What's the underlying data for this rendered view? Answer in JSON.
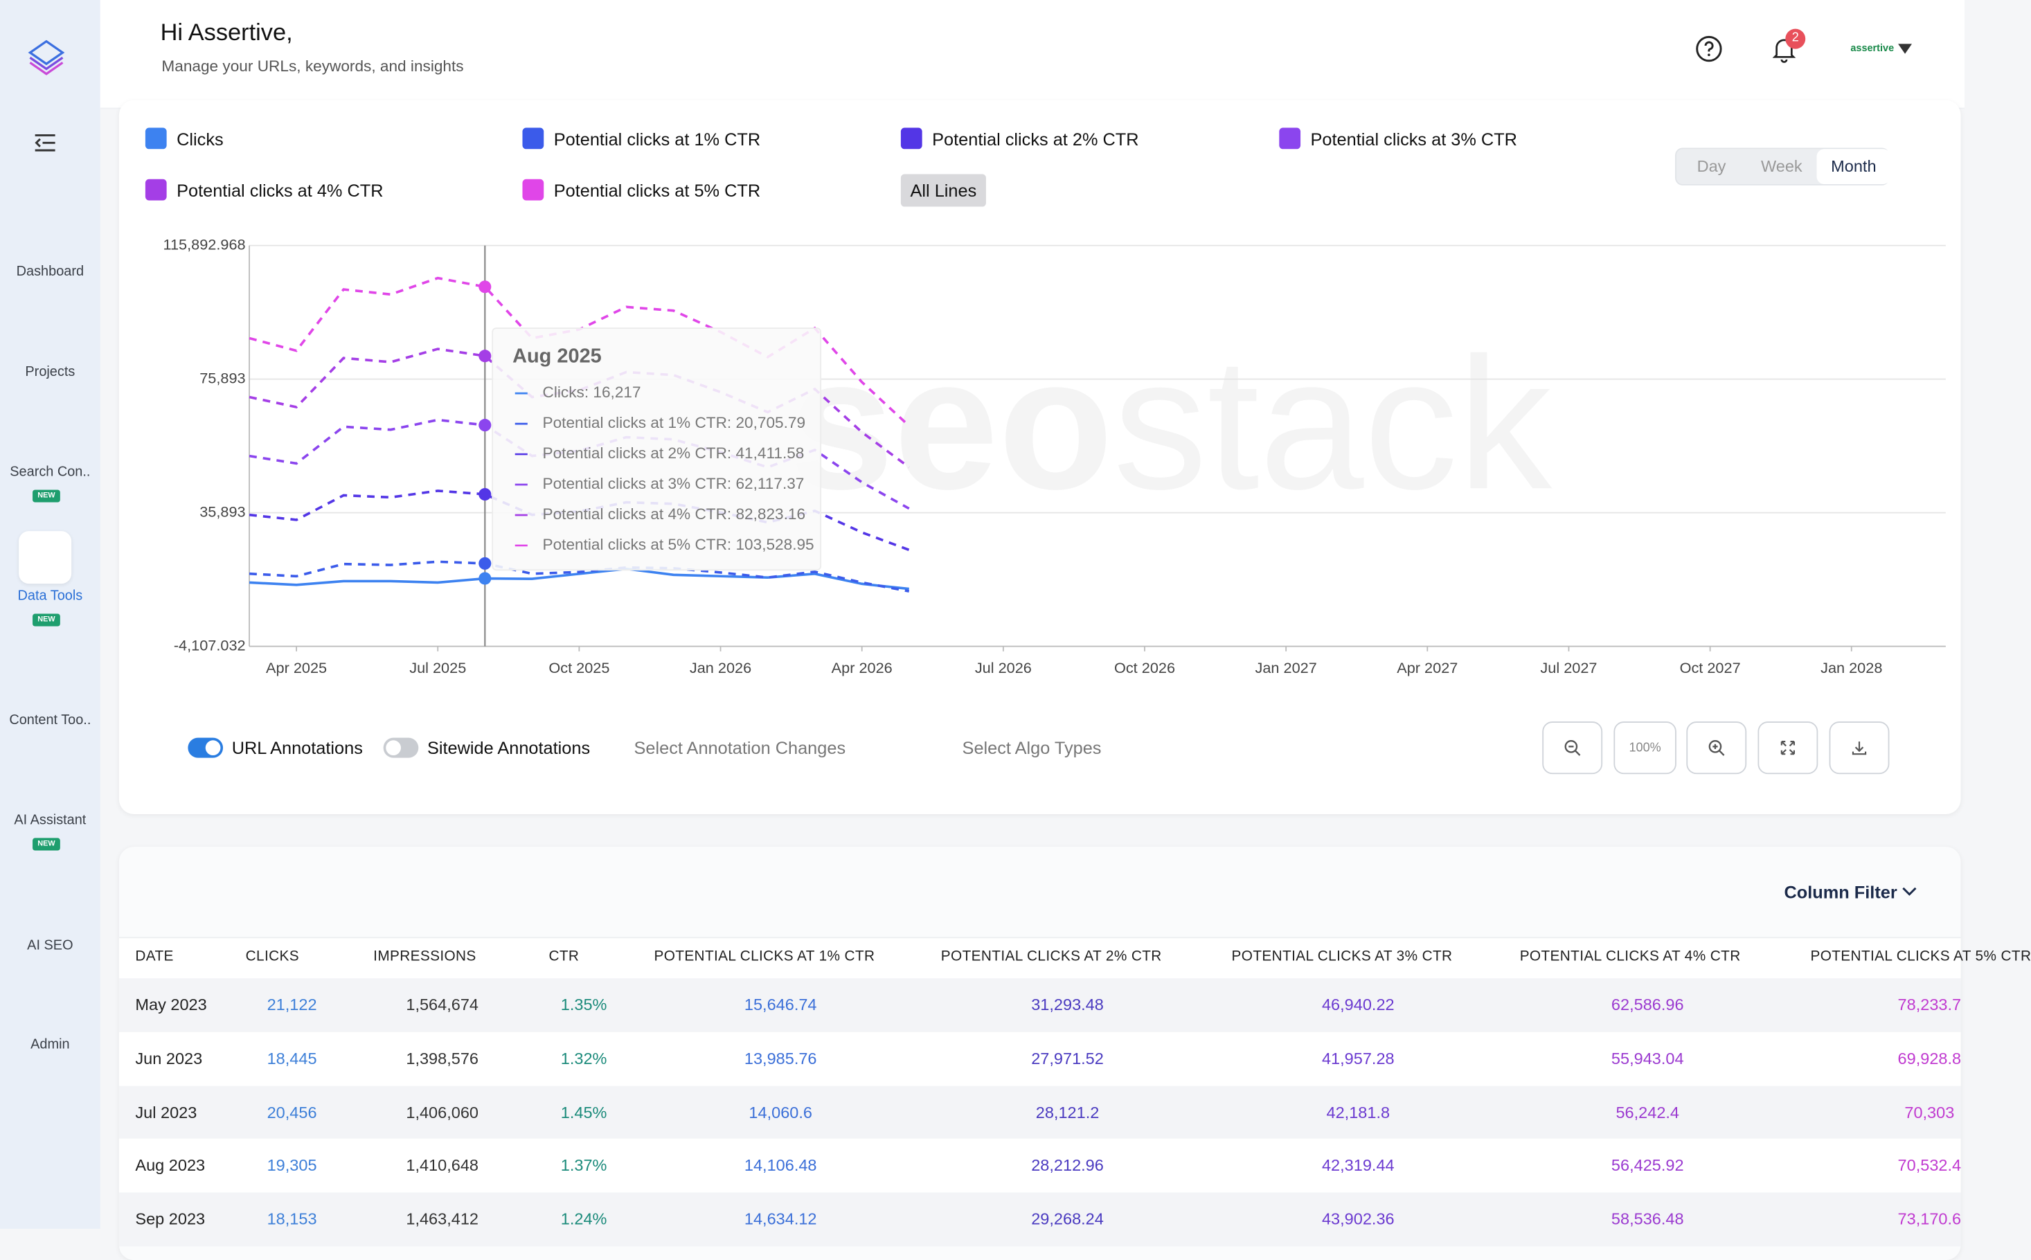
{
  "sidebar": {
    "items": [
      {
        "label": "Dashboard"
      },
      {
        "label": "Projects"
      },
      {
        "label": "Search Con..",
        "badge": "NEW"
      },
      {
        "label": "Data Tools",
        "badge": "NEW"
      },
      {
        "label": "Content Too.."
      },
      {
        "label": "AI Assistant",
        "badge": "NEW"
      },
      {
        "label": "AI SEO"
      },
      {
        "label": "Admin"
      }
    ]
  },
  "header": {
    "greeting": "Hi Assertive,",
    "subtitle": "Manage your URLs, keywords, and insights",
    "notifications": "2",
    "account": "assertive"
  },
  "chart_data": {
    "type": "line",
    "x": [
      "2025-03",
      "2025-04",
      "2025-05",
      "2025-06",
      "2025-07",
      "2025-08",
      "2025-09",
      "2025-10",
      "2025-11",
      "2025-12",
      "2026-01",
      "2026-02",
      "2026-03",
      "2026-04",
      "2026-05"
    ],
    "series": [
      {
        "name": "Clicks",
        "color": "#3d82f0",
        "dashed": false,
        "values": [
          15000,
          14300,
          15400,
          15400,
          15000,
          16217,
          16100,
          17600,
          19100,
          17300,
          16900,
          16500,
          17600,
          14600,
          13100
        ]
      },
      {
        "name": "Potential clicks at 1% CTR",
        "color": "#3b5bea",
        "dashed": true,
        "values": [
          17630,
          16880,
          20550,
          20250,
          21230,
          20705.79,
          17630,
          18150,
          19500,
          19280,
          18000,
          16500,
          18230,
          15000,
          12380
        ]
      },
      {
        "name": "Potential clicks at 2% CTR",
        "color": "#5336e6",
        "dashed": true,
        "values": [
          35260,
          33760,
          41100,
          40500,
          42460,
          41411.58,
          35260,
          36300,
          39000,
          38560,
          36000,
          33000,
          36460,
          30000,
          24760
        ]
      },
      {
        "name": "Potential clicks at 3% CTR",
        "color": "#8b45ee",
        "dashed": true,
        "values": [
          52890,
          50640,
          61650,
          60750,
          63690,
          62117.37,
          52890,
          54450,
          58500,
          57840,
          54000,
          49500,
          54690,
          45000,
          37140
        ]
      },
      {
        "name": "Potential clicks at 4% CTR",
        "color": "#a43ee6",
        "dashed": true,
        "values": [
          70520,
          67520,
          82200,
          81000,
          84920,
          82823.16,
          70520,
          72600,
          78000,
          77120,
          72000,
          66000,
          72920,
          60000,
          49520
        ]
      },
      {
        "name": "Potential clicks at 5% CTR",
        "color": "#e046e8",
        "dashed": true,
        "values": [
          88150,
          84400,
          102750,
          101250,
          106150,
          103528.95,
          88150,
          90750,
          97500,
          96400,
          90000,
          82500,
          91150,
          75000,
          61900
        ]
      }
    ],
    "xlim": [
      "2025-03",
      "2028-03"
    ],
    "xticks": [
      {
        "value": "2025-04",
        "label": "Apr 2025"
      },
      {
        "value": "2025-07",
        "label": "Jul 2025"
      },
      {
        "value": "2025-10",
        "label": "Oct 2025"
      },
      {
        "value": "2026-01",
        "label": "Jan 2026"
      },
      {
        "value": "2026-04",
        "label": "Apr 2026"
      },
      {
        "value": "2026-07",
        "label": "Jul 2026"
      },
      {
        "value": "2026-10",
        "label": "Oct 2026"
      },
      {
        "value": "2027-01",
        "label": "Jan 2027"
      },
      {
        "value": "2027-04",
        "label": "Apr 2027"
      },
      {
        "value": "2027-07",
        "label": "Jul 2027"
      },
      {
        "value": "2027-10",
        "label": "Oct 2027"
      },
      {
        "value": "2028-01",
        "label": "Jan 2028"
      }
    ],
    "ylim": [
      -4107.032,
      115892.968
    ],
    "yticks": [
      {
        "value": -4107.032,
        "label": "-4,107.032"
      },
      {
        "value": 35893,
        "label": "35,893"
      },
      {
        "value": 75893,
        "label": "75,893"
      },
      {
        "value": 115892.968,
        "label": "115,892.968"
      }
    ],
    "grid": true,
    "all_lines": "All Lines",
    "tooltip": {
      "title": "Aug 2025",
      "rows": [
        "Clicks: 16,217",
        "Potential clicks at 1% CTR: 20,705.79",
        "Potential clicks at 2% CTR: 41,411.58",
        "Potential clicks at 3% CTR: 62,117.37",
        "Potential clicks at 4% CTR: 82,823.16",
        "Potential clicks at 5% CTR: 103,528.95"
      ]
    },
    "watermark": [
      "seo",
      "stack"
    ]
  },
  "chart_controls": {
    "periods": [
      "Day",
      "Week",
      "Month"
    ],
    "toggles": [
      "URL Annotations",
      "Sitewide Annotations"
    ],
    "selects": [
      "Select Annotation Changes",
      "Select Algo Types"
    ],
    "zoom": "100%"
  },
  "table": {
    "column_filter": "Column Filter",
    "headers": [
      "DATE",
      "CLICKS",
      "IMPRESSIONS",
      "CTR",
      "POTENTIAL CLICKS AT 1% CTR",
      "POTENTIAL CLICKS AT 2% CTR",
      "POTENTIAL CLICKS AT 3% CTR",
      "POTENTIAL CLICKS AT 4% CTR",
      "POTENTIAL CLICKS AT 5% CTR"
    ],
    "rows": [
      [
        "May 2023",
        "21,122",
        "1,564,674",
        "1.35%",
        "15,646.74",
        "31,293.48",
        "46,940.22",
        "62,586.96",
        "78,233.7"
      ],
      [
        "Jun 2023",
        "18,445",
        "1,398,576",
        "1.32%",
        "13,985.76",
        "27,971.52",
        "41,957.28",
        "55,943.04",
        "69,928.8"
      ],
      [
        "Jul 2023",
        "20,456",
        "1,406,060",
        "1.45%",
        "14,060.6",
        "28,121.2",
        "42,181.8",
        "56,242.4",
        "70,303"
      ],
      [
        "Aug 2023",
        "19,305",
        "1,410,648",
        "1.37%",
        "14,106.48",
        "28,212.96",
        "42,319.44",
        "56,425.92",
        "70,532.4"
      ],
      [
        "Sep 2023",
        "18,153",
        "1,463,412",
        "1.24%",
        "14,634.12",
        "29,268.24",
        "43,902.36",
        "58,536.48",
        "73,170.6"
      ]
    ]
  }
}
